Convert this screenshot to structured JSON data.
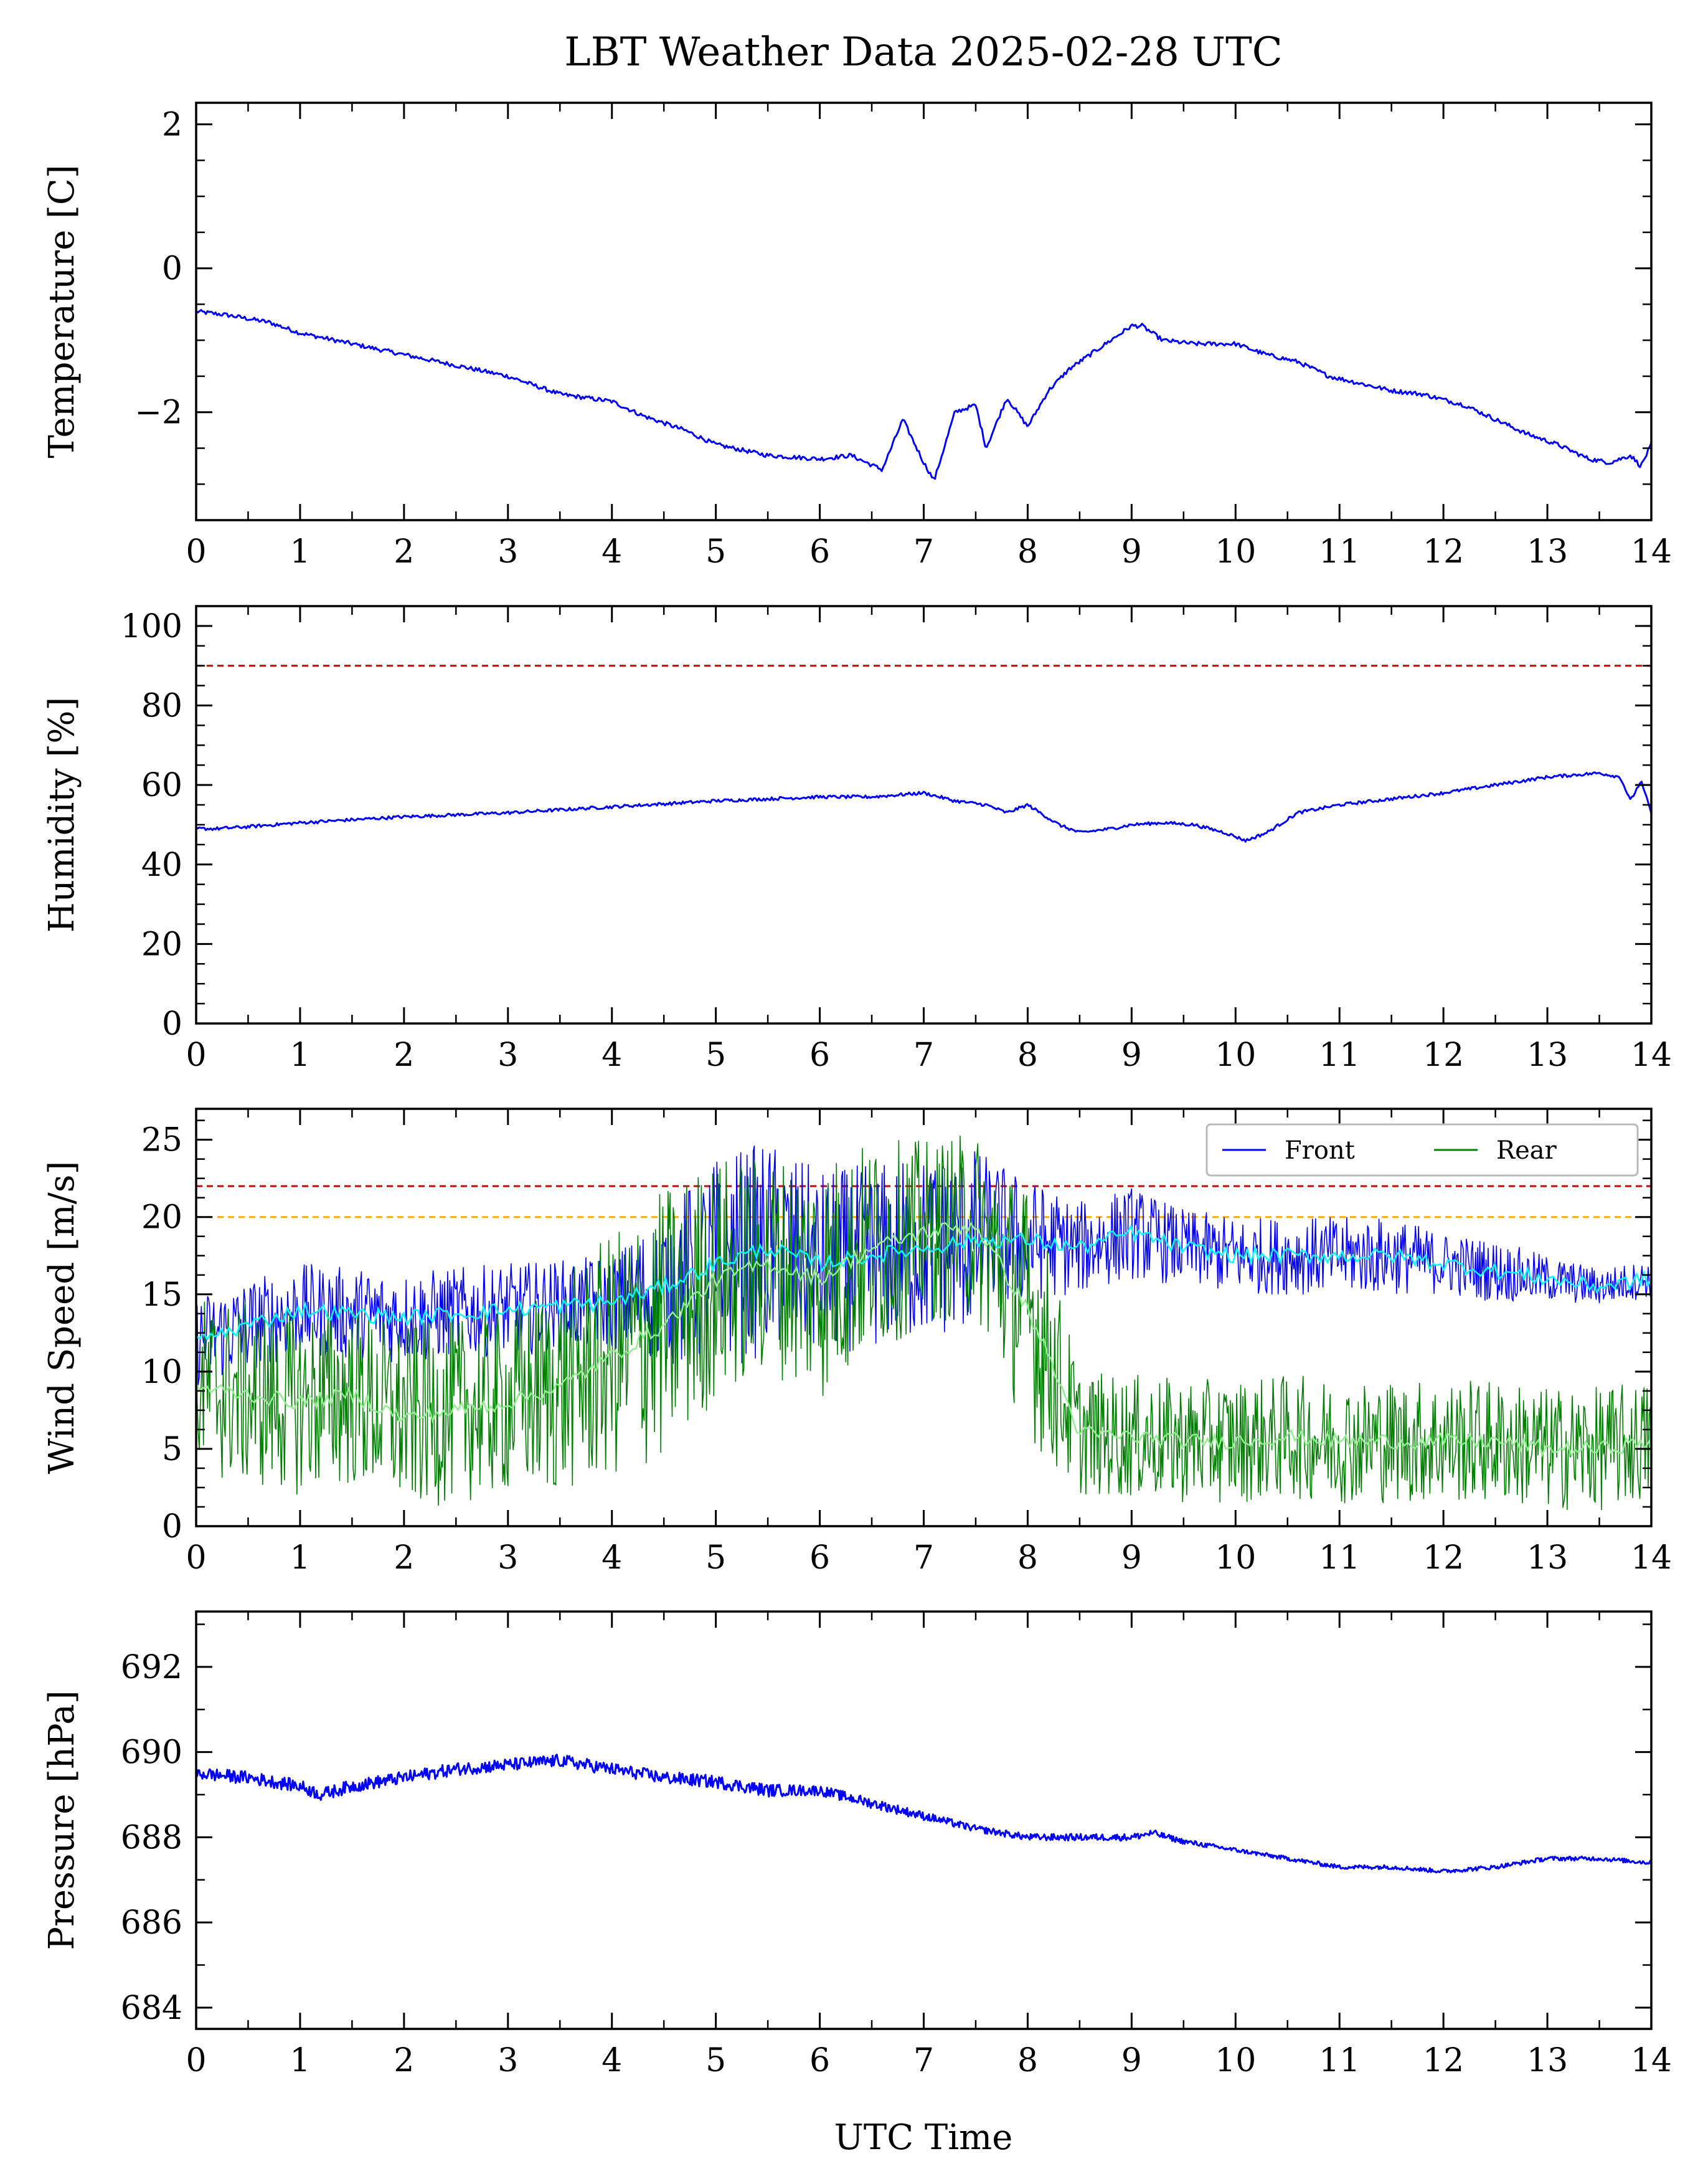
{
  "figure": {
    "title": "LBT Weather Data 2025-02-28 UTC",
    "xlabel": "UTC Time"
  },
  "colors": {
    "front": "#0000ff",
    "rear": "#008000",
    "front_smooth": "#00ffff",
    "rear_smooth": "#90ee90",
    "limit_red": "#cc0000",
    "limit_orange": "#ffaa00"
  },
  "chart_data": [
    {
      "type": "line",
      "id": "temperature",
      "ylabel": "Temperature [C]",
      "xlim": [
        0,
        14
      ],
      "ylim": [
        -3.5,
        2.3
      ],
      "xticks": [
        0,
        1,
        2,
        3,
        4,
        5,
        6,
        7,
        8,
        9,
        10,
        11,
        12,
        13,
        14
      ],
      "yticks": [
        -2,
        0,
        2
      ],
      "ytick_labels": [
        "−2",
        "0",
        "2"
      ],
      "series": [
        {
          "color": "#0000ff",
          "x": [
            0,
            0.3,
            0.5,
            0.7,
            1,
            1.5,
            2,
            2.5,
            3,
            3.5,
            4,
            4.3,
            4.7,
            5,
            5.5,
            6,
            6.3,
            6.6,
            6.8,
            7,
            7.1,
            7.3,
            7.5,
            7.6,
            7.8,
            8,
            8.2,
            8.4,
            8.6,
            8.8,
            9,
            9.1,
            9.3,
            9.6,
            10,
            10.3,
            10.6,
            10.9,
            11.2,
            11.5,
            11.8,
            12.2,
            12.5,
            12.8,
            13.1,
            13.4,
            13.6,
            13.8,
            13.9,
            14
          ],
          "y": [
            -0.6,
            -0.65,
            -0.7,
            -0.75,
            -0.9,
            -1.05,
            -1.2,
            -1.35,
            -1.5,
            -1.75,
            -1.85,
            -2.05,
            -2.25,
            -2.45,
            -2.6,
            -2.65,
            -2.6,
            -2.8,
            -2.1,
            -2.7,
            -2.95,
            -2.0,
            -1.9,
            -2.5,
            -1.8,
            -2.2,
            -1.7,
            -1.4,
            -1.2,
            -1.0,
            -0.8,
            -0.8,
            -1.0,
            -1.05,
            -1.05,
            -1.2,
            -1.3,
            -1.5,
            -1.6,
            -1.7,
            -1.75,
            -1.9,
            -2.1,
            -2.3,
            -2.45,
            -2.65,
            -2.7,
            -2.6,
            -2.75,
            -2.45
          ]
        }
      ],
      "hlines": []
    },
    {
      "type": "line",
      "id": "humidity",
      "ylabel": "Humidity [%]",
      "xlim": [
        0,
        14
      ],
      "ylim": [
        0,
        105
      ],
      "xticks": [
        0,
        1,
        2,
        3,
        4,
        5,
        6,
        7,
        8,
        9,
        10,
        11,
        12,
        13,
        14
      ],
      "yticks": [
        0,
        20,
        40,
        60,
        80,
        100
      ],
      "ytick_labels": [
        "0",
        "20",
        "40",
        "60",
        "80",
        "100"
      ],
      "series": [
        {
          "color": "#0000ff",
          "x": [
            0,
            0.2,
            0.5,
            1,
            2,
            3,
            4,
            5,
            6,
            6.5,
            7,
            7.3,
            7.6,
            7.8,
            8,
            8.3,
            8.5,
            8.8,
            9,
            9.3,
            9.6,
            9.9,
            10.1,
            10.3,
            10.6,
            11,
            11.5,
            12,
            12.5,
            13,
            13.5,
            13.7,
            13.8,
            13.9,
            14
          ],
          "y": [
            49,
            49,
            49.5,
            50.5,
            52,
            53,
            54.5,
            56,
            57,
            57,
            58,
            56,
            55,
            53,
            55,
            50,
            48,
            49,
            50,
            50.5,
            50,
            48,
            46,
            48,
            53,
            55,
            56.5,
            58,
            60,
            62,
            63,
            62,
            56,
            61,
            53
          ]
        }
      ],
      "hlines": [
        {
          "y": 90,
          "color": "#cc0000"
        }
      ]
    },
    {
      "type": "line",
      "id": "wind",
      "ylabel": "Wind Speed [m/s]",
      "xlim": [
        0,
        14
      ],
      "ylim": [
        0,
        27
      ],
      "xticks": [
        0,
        1,
        2,
        3,
        4,
        5,
        6,
        7,
        8,
        9,
        10,
        11,
        12,
        13,
        14
      ],
      "yticks": [
        0,
        5,
        10,
        15,
        20,
        25
      ],
      "ytick_labels": [
        "0",
        "5",
        "10",
        "15",
        "20",
        "25"
      ],
      "legend": {
        "placement": "top-right",
        "entries": [
          "Front",
          "Rear"
        ]
      },
      "series": [
        {
          "name": "Front",
          "color": "#0000ff",
          "x": [
            0,
            1,
            2,
            3,
            4,
            4.5,
            5,
            5.5,
            6,
            6.5,
            7,
            7.5,
            8,
            8.5,
            9,
            9.5,
            10,
            10.5,
            11,
            11.5,
            12,
            12.5,
            13,
            13.5,
            14
          ],
          "y": [
            12,
            14,
            13.5,
            14,
            14.5,
            15.5,
            17,
            18,
            17,
            17.5,
            18,
            18.5,
            18.5,
            18,
            19,
            18,
            17.5,
            17.5,
            17.5,
            17.5,
            17,
            16.5,
            16,
            15.5,
            16
          ],
          "spread": [
            3,
            3,
            3,
            3,
            3,
            5,
            7,
            7,
            6,
            6,
            6,
            6,
            4,
            3,
            3,
            2.5,
            2.5,
            2.5,
            2.5,
            2.5,
            2,
            2,
            1.5,
            1.2,
            1.2
          ]
        },
        {
          "name": "Rear",
          "color": "#008000",
          "x": [
            0,
            0.5,
            1,
            1.5,
            2,
            2.5,
            3,
            3.5,
            4,
            4.5,
            5,
            5.5,
            6,
            6.5,
            7,
            7.5,
            8,
            8.2,
            8.5,
            9,
            9.5,
            10,
            10.5,
            11,
            11.5,
            12,
            12.5,
            13,
            13.5,
            14
          ],
          "y": [
            9,
            8.5,
            8,
            8.5,
            7,
            7.5,
            8,
            9,
            11,
            13,
            16,
            17,
            16,
            18,
            19,
            19.5,
            14,
            11,
            6,
            5.8,
            5.5,
            5.5,
            5.8,
            5.5,
            5.5,
            5.5,
            5.5,
            5,
            5,
            5.5
          ],
          "spread": [
            6,
            6,
            6,
            6,
            6,
            6,
            6,
            7,
            8,
            9,
            8,
            7,
            8,
            7,
            6,
            6,
            8,
            7,
            4,
            4,
            4,
            4,
            4,
            4,
            4,
            4,
            4,
            4,
            4,
            4
          ]
        },
        {
          "name": "",
          "color": "#00ffff",
          "smooth_of": "Front"
        },
        {
          "name": "",
          "color": "#90ee90",
          "smooth_of": "Rear"
        }
      ],
      "hlines": [
        {
          "y": 22,
          "color": "#cc0000"
        },
        {
          "y": 20,
          "color": "#ffaa00"
        }
      ]
    },
    {
      "type": "line",
      "id": "pressure",
      "ylabel": "Pressure [hPa]",
      "xlim": [
        0,
        14
      ],
      "ylim": [
        683.5,
        693.3
      ],
      "xticks": [
        0,
        1,
        2,
        3,
        4,
        5,
        6,
        7,
        8,
        9,
        10,
        11,
        12,
        13,
        14
      ],
      "yticks": [
        684,
        686,
        688,
        690,
        692
      ],
      "ytick_labels": [
        "684",
        "686",
        "688",
        "690",
        "692"
      ],
      "series": [
        {
          "color": "#0000ff",
          "x": [
            0,
            0.5,
            1,
            1.2,
            1.5,
            2,
            2.5,
            3,
            3.5,
            4,
            4.5,
            5,
            5.5,
            6,
            6.5,
            7,
            7.5,
            8,
            8.5,
            9,
            9.2,
            9.5,
            10,
            10.5,
            11,
            11.5,
            12,
            12.5,
            13,
            13.5,
            14
          ],
          "y": [
            689.5,
            689.4,
            689.2,
            689.0,
            689.2,
            689.4,
            689.6,
            689.7,
            689.8,
            689.6,
            689.4,
            689.3,
            689.1,
            689.1,
            688.8,
            688.5,
            688.2,
            688.0,
            688.0,
            688.0,
            688.1,
            687.9,
            687.7,
            687.5,
            687.3,
            687.3,
            687.2,
            687.3,
            687.5,
            687.5,
            687.4
          ],
          "spread": [
            0.15,
            0.15,
            0.15,
            0.15,
            0.15,
            0.15,
            0.15,
            0.15,
            0.15,
            0.15,
            0.15,
            0.15,
            0.15,
            0.12,
            0.12,
            0.1,
            0.08,
            0.08,
            0.08,
            0.08,
            0.08,
            0.06,
            0.05,
            0.05,
            0.05,
            0.05,
            0.05,
            0.05,
            0.05,
            0.05,
            0.05
          ]
        }
      ],
      "hlines": []
    }
  ]
}
